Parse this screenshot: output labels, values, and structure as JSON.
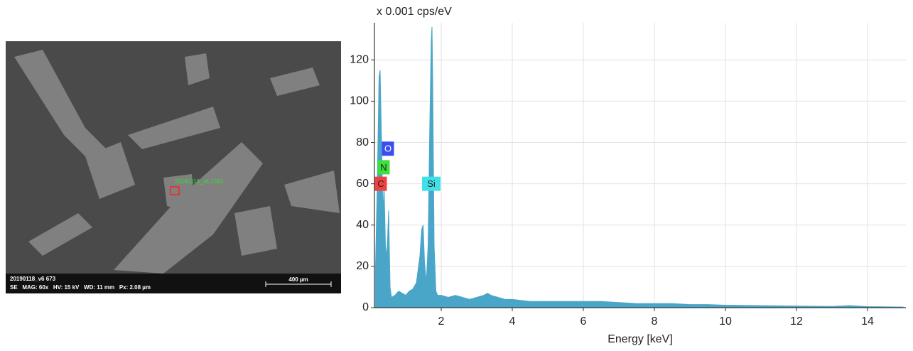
{
  "chart_data": {
    "type": "spectrum",
    "y_unit": "x 0.001 cps/eV",
    "x_label": "Energy [keV]",
    "xlim": [
      0.12,
      15.08
    ],
    "ylim": [
      0,
      138
    ],
    "xticks": [
      2,
      4,
      6,
      8,
      10,
      12,
      14
    ],
    "yticks": [
      0,
      20,
      40,
      60,
      80,
      100,
      120
    ],
    "grid": true,
    "color": "#4aa6c9",
    "x": [
      0.15,
      0.2,
      0.25,
      0.28,
      0.32,
      0.36,
      0.39,
      0.43,
      0.47,
      0.52,
      0.56,
      0.6,
      0.7,
      0.8,
      0.9,
      1.0,
      1.1,
      1.2,
      1.3,
      1.4,
      1.45,
      1.49,
      1.53,
      1.58,
      1.63,
      1.68,
      1.72,
      1.74,
      1.76,
      1.8,
      1.85,
      1.9,
      2.0,
      2.2,
      2.4,
      2.6,
      2.8,
      3.0,
      3.2,
      3.3,
      3.4,
      3.6,
      3.8,
      4.0,
      4.5,
      5.0,
      5.5,
      6.0,
      6.5,
      7.0,
      7.5,
      8.0,
      8.5,
      9.0,
      9.5,
      10.0,
      11.0,
      12.0,
      13.0,
      13.5,
      14.0,
      15.0
    ],
    "values": [
      20,
      60,
      112,
      115,
      80,
      45,
      60,
      30,
      25,
      47,
      10,
      5,
      6,
      8,
      7,
      6,
      8,
      9,
      12,
      25,
      38,
      40,
      22,
      12,
      30,
      90,
      130,
      136,
      110,
      30,
      8,
      6,
      6,
      5,
      6,
      5,
      4,
      5,
      6,
      7,
      6,
      5,
      4,
      4,
      3,
      3,
      3,
      3,
      3,
      2.5,
      2,
      2,
      2,
      1.5,
      1.5,
      1.2,
      1,
      0.8,
      0.6,
      1,
      0.5,
      0.3
    ],
    "peak_labels": [
      {
        "text": "O",
        "x": 0.5,
        "y": 77,
        "color": "#3b4cf0"
      },
      {
        "text": "N",
        "x": 0.38,
        "y": 68,
        "color": "#3de03d"
      },
      {
        "text": "C",
        "x": 0.3,
        "y": 60,
        "color": "#f04040"
      },
      {
        "text": "Si",
        "x": 1.72,
        "y": 60,
        "color": "#40e0e8"
      }
    ]
  },
  "sem_image": {
    "caption_line1": "20190118_v6 673",
    "caption_line2": "SE   MAG: 60x   HV: 15 kV   WD: 11 mm   Px: 2.08 µm",
    "scale_bar": "400 µm",
    "marker_label": "20190118_v6 1014"
  }
}
